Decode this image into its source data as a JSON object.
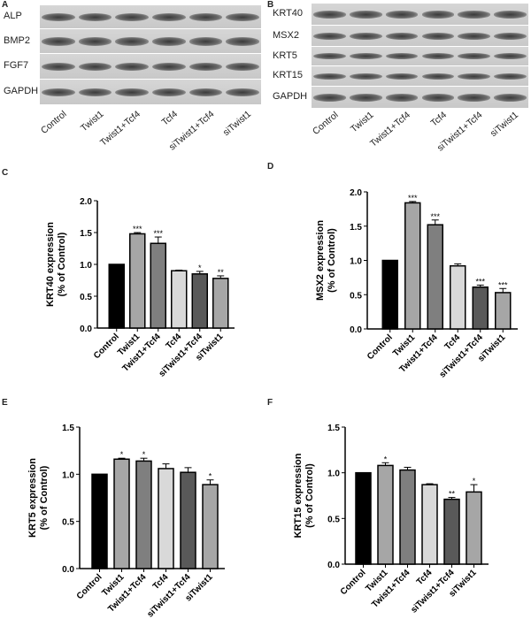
{
  "panels": {
    "a": "A",
    "b": "B",
    "c": "C",
    "d": "D",
    "e": "E",
    "f": "F"
  },
  "lanes": [
    "Control",
    "Twist1",
    "Twist1+Tcf4",
    "Tcf4",
    "siTwist1+Tcf4",
    "siTwist1"
  ],
  "blot_a": {
    "rows": [
      "ALP",
      "BMP2",
      "FGF7",
      "GAPDH"
    ]
  },
  "blot_b": {
    "rows": [
      "KRT40",
      "MSX2",
      "KRT5",
      "KRT15",
      "GAPDH"
    ]
  },
  "colors": {
    "bars": [
      "#000000",
      "#a6a6a6",
      "#7f7f7f",
      "#d9d9d9",
      "#595959",
      "#a6a6a6"
    ]
  },
  "chart_data": [
    {
      "type": "bar",
      "panel": "C",
      "ylabel": "KRT40 expression",
      "ylabel2": "(% of Control)",
      "ylim": [
        0,
        2.0
      ],
      "yticks": [
        "0.0",
        "0.5",
        "1.0",
        "1.5",
        "2.0"
      ],
      "categories": [
        "Control",
        "Twist1",
        "Twist1+Tcf4",
        "Tcf4",
        "siTwist1+Tcf4",
        "siTwist1"
      ],
      "values": [
        1.0,
        1.48,
        1.33,
        0.9,
        0.85,
        0.78
      ],
      "errors": [
        0,
        0.02,
        0.1,
        0.01,
        0.04,
        0.04
      ],
      "sig": [
        "",
        "***",
        "***",
        "",
        "*",
        "**"
      ]
    },
    {
      "type": "bar",
      "panel": "D",
      "ylabel": "MSX2  expression",
      "ylabel2": "(% of Control)",
      "ylim": [
        0,
        2.0
      ],
      "yticks": [
        "0.0",
        "0.5",
        "1.0",
        "1.5",
        "2.0"
      ],
      "categories": [
        "Control",
        "Twist1",
        "Twist1+Tcf4",
        "Tcf4",
        "siTwist1+Tcf4",
        "siTwist1"
      ],
      "values": [
        1.0,
        1.84,
        1.52,
        0.92,
        0.61,
        0.53
      ],
      "errors": [
        0,
        0.02,
        0.07,
        0.03,
        0.03,
        0.06
      ],
      "sig": [
        "",
        "***",
        "***",
        "",
        "***",
        "***"
      ]
    },
    {
      "type": "bar",
      "panel": "E",
      "ylabel": "KRT5 expression",
      "ylabel2": "(% of Control)",
      "ylim": [
        0,
        1.5
      ],
      "yticks": [
        "0.0",
        "0.5",
        "1.0",
        "1.5"
      ],
      "categories": [
        "Control",
        "Twist1",
        "Twist1+Tcf4",
        "Tcf4",
        "siTwist1+Tcf4",
        "siTwist1"
      ],
      "values": [
        1.0,
        1.16,
        1.14,
        1.06,
        1.02,
        0.89
      ],
      "errors": [
        0,
        0.01,
        0.03,
        0.05,
        0.05,
        0.05
      ],
      "sig": [
        "",
        "*",
        "*",
        "",
        "",
        "*"
      ]
    },
    {
      "type": "bar",
      "panel": "F",
      "ylabel": "KRT15 expression",
      "ylabel2": "(% of Control)",
      "ylim": [
        0,
        1.5
      ],
      "yticks": [
        "0.0",
        "0.5",
        "1.0",
        "1.5"
      ],
      "categories": [
        "Control",
        "Twist1",
        "Twist1+Tcf4",
        "Tcf4",
        "siTwist1+Tcf4",
        "siTwist1"
      ],
      "values": [
        1.0,
        1.08,
        1.03,
        0.87,
        0.71,
        0.79
      ],
      "errors": [
        0,
        0.03,
        0.03,
        0.01,
        0.02,
        0.08
      ],
      "sig": [
        "",
        "*",
        "",
        "",
        "**",
        "*"
      ]
    }
  ]
}
